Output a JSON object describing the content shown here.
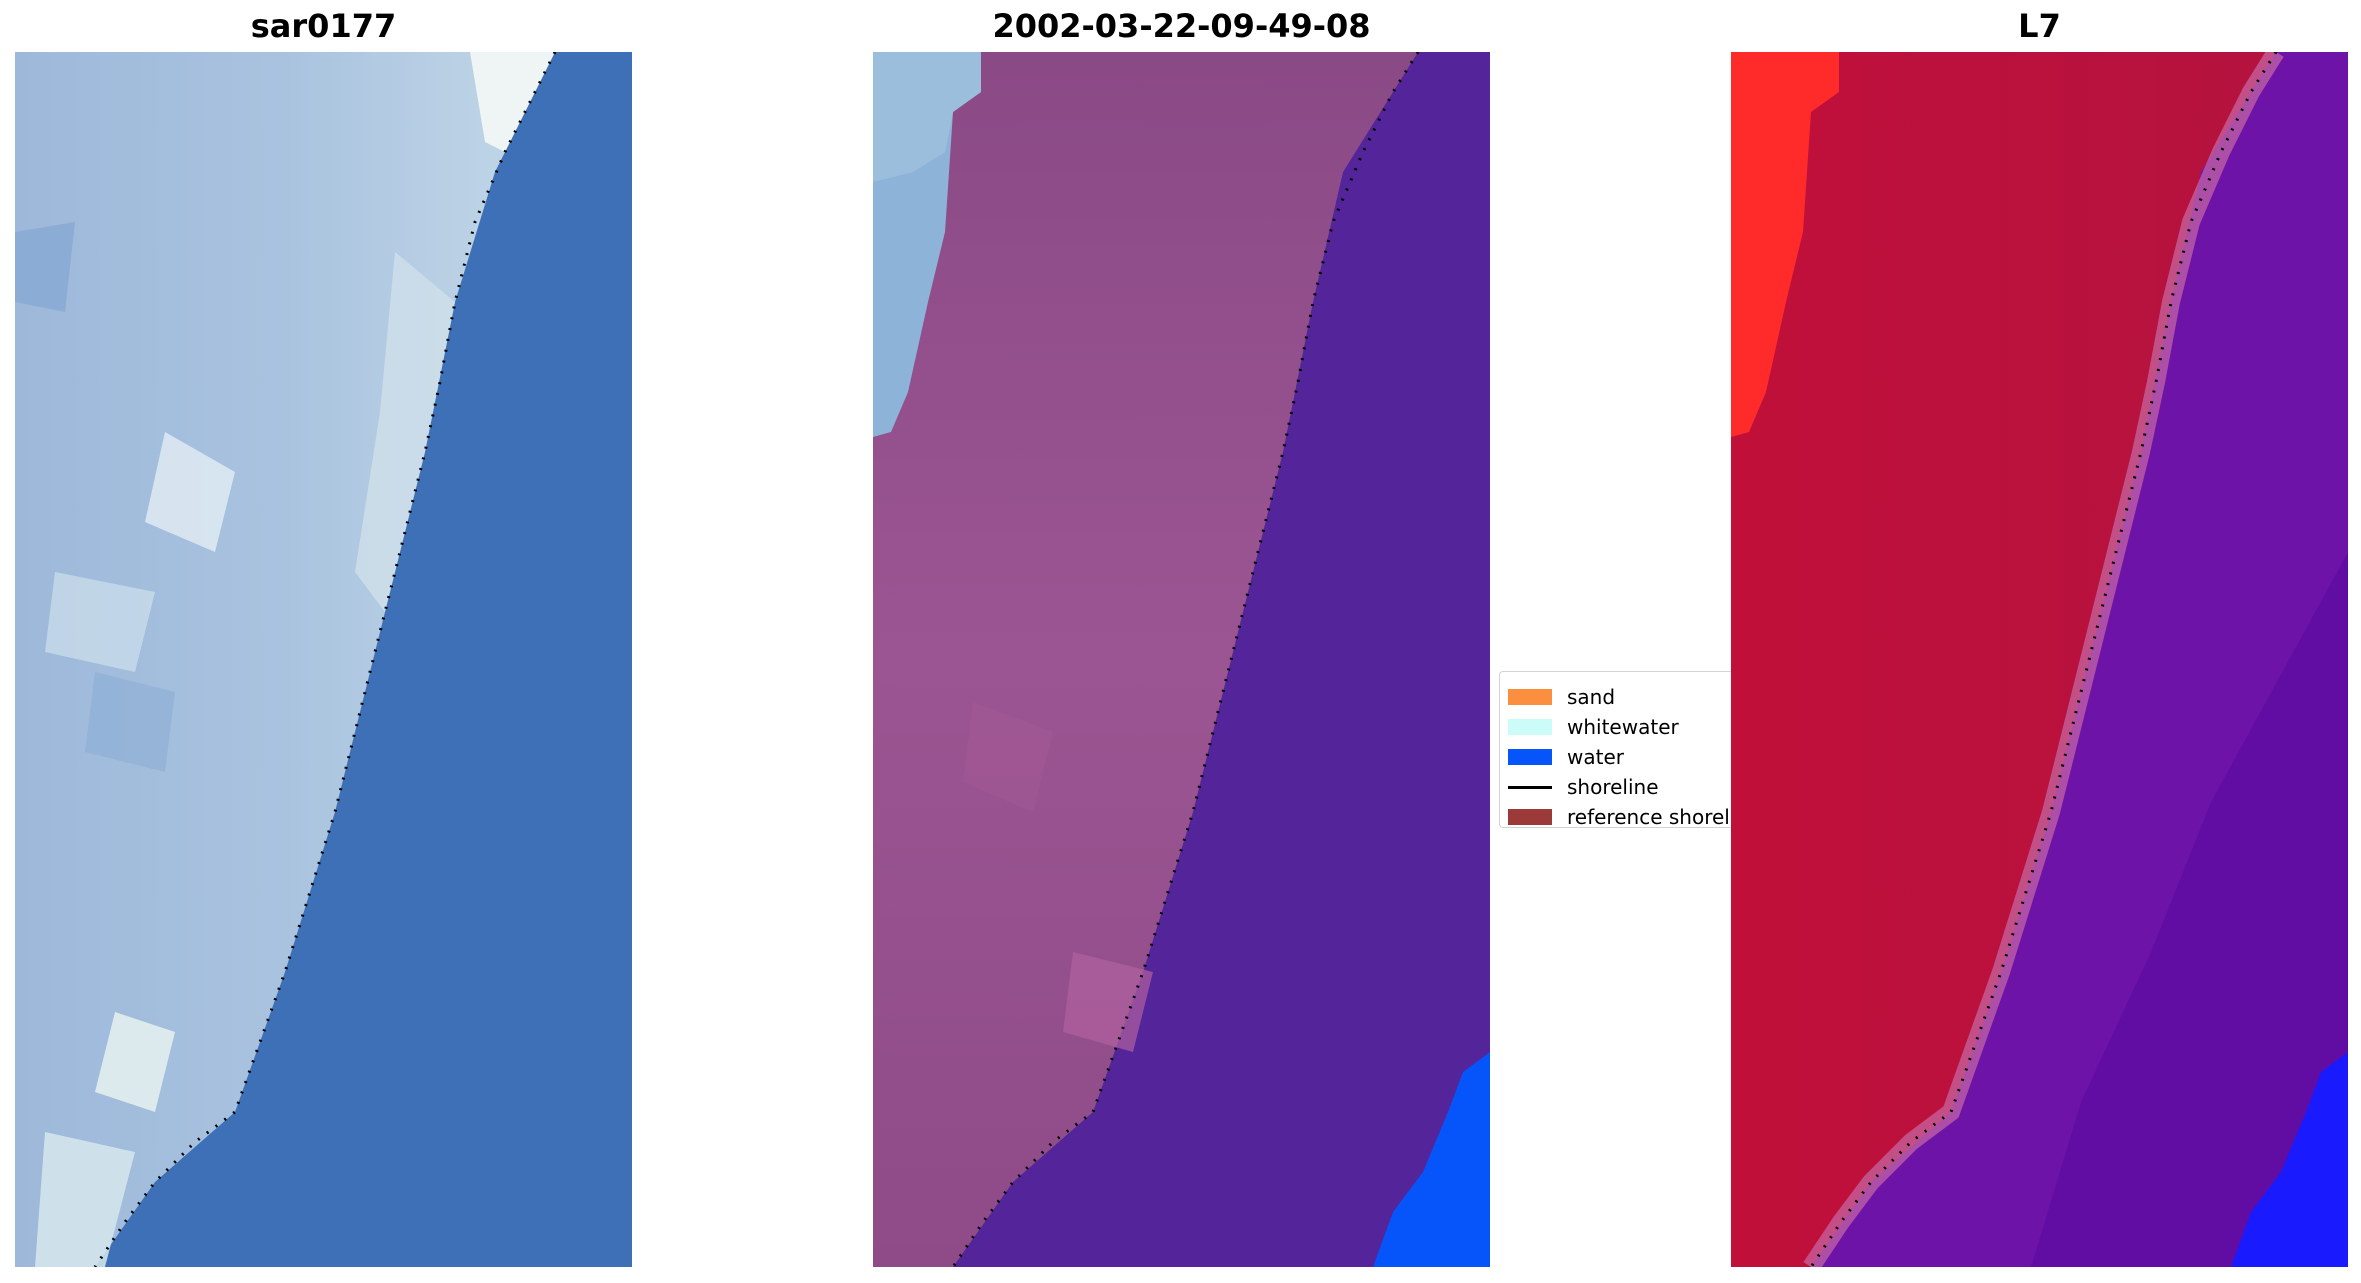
{
  "panels": [
    {
      "title": "sar0177"
    },
    {
      "title": "2002-03-22-09-49-08"
    },
    {
      "title": "L7"
    }
  ],
  "legend": {
    "items": [
      {
        "label": "sand",
        "color": "#fb8e3f"
      },
      {
        "label": "whitewater",
        "color": "#ccfcf8"
      },
      {
        "label": "water",
        "color": "#0555fb"
      },
      {
        "label": "shoreline",
        "color": "#000000"
      },
      {
        "label": "reference shoreline",
        "color": "#9c3a3a"
      }
    ]
  },
  "colors": {
    "sea_blue": "#3f73b8",
    "land_pale": "#a6bfdc",
    "classified_land": "#8c4a85",
    "classified_water": "#54249a",
    "classified_edge": "#8db4d8",
    "index_land": "#c21238",
    "index_water": "#6e13a8",
    "index_edge_red": "#ff2020",
    "water_class": "#0555fb"
  }
}
